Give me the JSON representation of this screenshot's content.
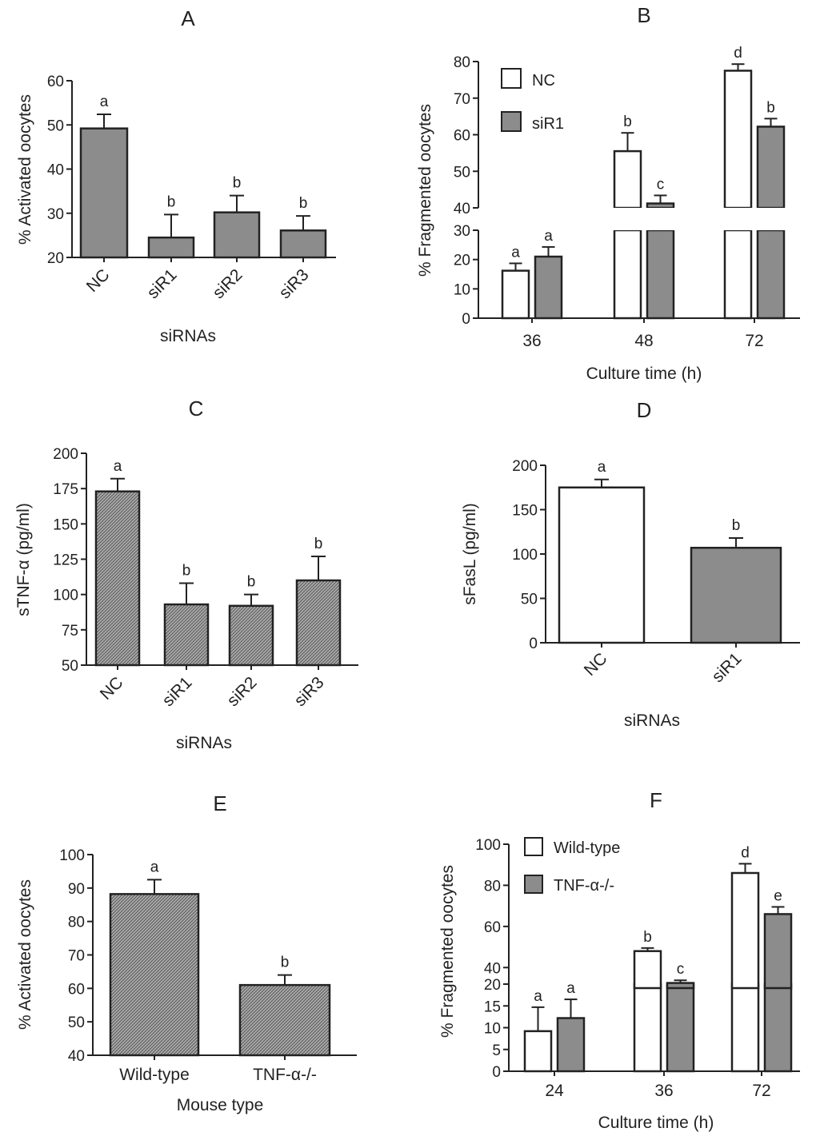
{
  "colors": {
    "axis": "#222222",
    "white_fill": "#ffffff",
    "grey_fill": "#8c8c8c",
    "hatch_fill": "#9a9a9a",
    "error_bar": "#222222"
  },
  "chart_data": [
    {
      "id": "A",
      "type": "bar",
      "title": "A",
      "categories": [
        "NC",
        "siR1",
        "siR2",
        "siR3"
      ],
      "values": [
        49.2,
        24.5,
        30.2,
        26.1
      ],
      "errors": [
        3.2,
        5.2,
        3.8,
        3.3
      ],
      "letters": [
        "a",
        "b",
        "b",
        "b"
      ],
      "xlabel": "siRNAs",
      "ylabel": "% Activated oocytes",
      "ylim": [
        20,
        60
      ],
      "yticks": [
        20,
        30,
        40,
        50,
        60
      ],
      "fill": "#8c8c8c"
    },
    {
      "id": "B",
      "type": "bar",
      "title": "B",
      "categories": [
        "36",
        "48",
        "72"
      ],
      "series": [
        {
          "name": "NC",
          "values": [
            16.2,
            55.5,
            77.5
          ],
          "errors": [
            2.5,
            5.0,
            1.8
          ],
          "letters": [
            "a",
            "b",
            "d"
          ],
          "fill": "#ffffff"
        },
        {
          "name": "siR1",
          "values": [
            21.0,
            41.2,
            62.2
          ],
          "errors": [
            3.3,
            2.2,
            2.2
          ],
          "letters": [
            "a",
            "c",
            "b"
          ],
          "fill": "#8c8c8c"
        }
      ],
      "xlabel": "Culture time (h)",
      "ylabel": "% Fragmented oocytes",
      "ylim": [
        0,
        80
      ],
      "axis_break": [
        30,
        40
      ],
      "yticks": [
        0,
        10,
        20,
        30,
        40,
        50,
        60,
        70,
        80
      ],
      "legend": "top-left"
    },
    {
      "id": "C",
      "type": "bar",
      "title": "C",
      "categories": [
        "NC",
        "siR1",
        "siR2",
        "siR3"
      ],
      "values": [
        173,
        93,
        92,
        110
      ],
      "errors": [
        9,
        15,
        8,
        17
      ],
      "letters": [
        "a",
        "b",
        "b",
        "b"
      ],
      "xlabel": "siRNAs",
      "ylabel": "sTNF-α (pg/ml)",
      "ylim": [
        50,
        200
      ],
      "yticks": [
        50,
        75,
        100,
        125,
        150,
        175,
        200
      ],
      "fill": "#9a9a9a"
    },
    {
      "id": "D",
      "type": "bar",
      "title": "D",
      "categories": [
        "NC",
        "siR1"
      ],
      "values": [
        175,
        107
      ],
      "fills": [
        "#ffffff",
        "#8c8c8c"
      ],
      "errors": [
        9,
        11
      ],
      "letters": [
        "a",
        "b"
      ],
      "xlabel": "siRNAs",
      "ylabel": "sFasL (pg/ml)",
      "ylim": [
        0,
        200
      ],
      "yticks": [
        0,
        50,
        100,
        150,
        200
      ]
    },
    {
      "id": "E",
      "type": "bar",
      "title": "E",
      "categories": [
        "Wild-type",
        "TNF-α-/-"
      ],
      "values": [
        88.2,
        61.0
      ],
      "errors": [
        4.3,
        3.0
      ],
      "letters": [
        "a",
        "b"
      ],
      "xlabel": "Mouse type",
      "ylabel": "% Activated oocytes",
      "ylim": [
        40,
        100
      ],
      "yticks": [
        40,
        50,
        60,
        70,
        80,
        90,
        100
      ],
      "fill": "#9a9a9a"
    },
    {
      "id": "F",
      "type": "bar",
      "title": "F",
      "categories": [
        "24",
        "36",
        "72"
      ],
      "series": [
        {
          "name": "Wild-type",
          "values": [
            9.2,
            48.0,
            86.0
          ],
          "errors": [
            5.5,
            1.5,
            4.5
          ],
          "letters": [
            "a",
            "b",
            "d"
          ],
          "fill": "#ffffff"
        },
        {
          "name": "TNF-α-/-",
          "values": [
            12.2,
            32.5,
            66.0
          ],
          "errors": [
            4.3,
            1.3,
            3.5
          ],
          "letters": [
            "a",
            "c",
            "e"
          ],
          "fill": "#8c8c8c"
        }
      ],
      "xlabel": "Culture time (h)",
      "ylabel": "% Fragmented oocytes",
      "ylim": [
        0,
        100
      ],
      "axis_break": [
        20,
        30
      ],
      "yticks": [
        0,
        5,
        10,
        15,
        20,
        40,
        60,
        80,
        100
      ],
      "legend": "top-left"
    }
  ]
}
